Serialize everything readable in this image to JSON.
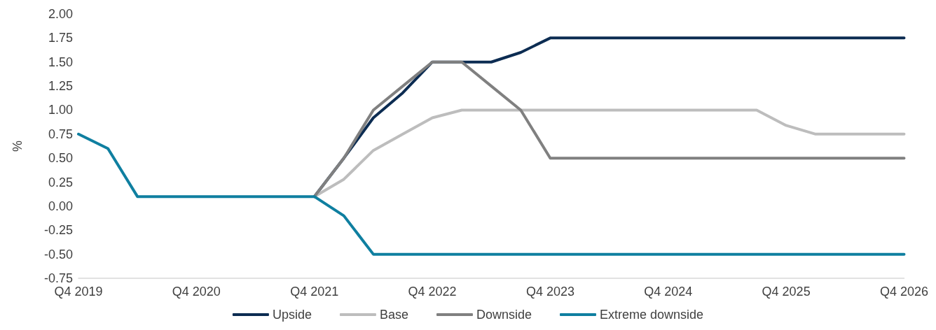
{
  "chart_data": {
    "type": "line",
    "ylabel": "%",
    "categories": [
      "Q4 2019",
      null,
      null,
      null,
      "Q4 2020",
      null,
      null,
      null,
      "Q4 2021",
      null,
      null,
      null,
      "Q4 2022",
      null,
      null,
      null,
      "Q4 2023",
      null,
      null,
      null,
      "Q4 2024",
      null,
      null,
      null,
      "Q4 2025",
      null,
      null,
      null,
      "Q4 2026"
    ],
    "series": [
      {
        "name": "Upside",
        "color": "#0c2c52",
        "values": [
          null,
          null,
          null,
          null,
          null,
          null,
          null,
          null,
          0.1,
          0.5,
          0.92,
          1.18,
          1.5,
          1.5,
          1.5,
          1.6,
          1.75,
          1.75,
          1.75,
          1.75,
          1.75,
          1.75,
          1.75,
          1.75,
          1.75,
          1.75,
          1.75,
          1.75,
          1.75
        ]
      },
      {
        "name": "Base",
        "color": "#bdbdbd",
        "values": [
          null,
          null,
          null,
          null,
          null,
          null,
          null,
          null,
          0.1,
          0.28,
          0.58,
          0.75,
          0.92,
          1.0,
          1.0,
          1.0,
          1.0,
          1.0,
          1.0,
          1.0,
          1.0,
          1.0,
          1.0,
          1.0,
          0.84,
          0.75,
          0.75,
          0.75,
          0.75
        ]
      },
      {
        "name": "Downside",
        "color": "#808080",
        "values": [
          null,
          null,
          null,
          null,
          null,
          null,
          null,
          null,
          0.1,
          0.5,
          1.0,
          1.25,
          1.5,
          1.5,
          1.25,
          1.0,
          0.5,
          0.5,
          0.5,
          0.5,
          0.5,
          0.5,
          0.5,
          0.5,
          0.5,
          0.5,
          0.5,
          0.5,
          0.5
        ]
      },
      {
        "name": "Extreme downside",
        "color": "#0f7fa0",
        "values": [
          0.75,
          0.6,
          0.1,
          0.1,
          0.1,
          0.1,
          0.1,
          0.1,
          0.1,
          -0.1,
          -0.5,
          -0.5,
          -0.5,
          -0.5,
          -0.5,
          -0.5,
          -0.5,
          -0.5,
          -0.5,
          -0.5,
          -0.5,
          -0.5,
          -0.5,
          -0.5,
          -0.5,
          -0.5,
          -0.5,
          -0.5,
          -0.5
        ]
      }
    ],
    "ylim": [
      -0.75,
      2.0
    ],
    "yticks": [
      {
        "value": -0.75,
        "label": "-0.75"
      },
      {
        "value": -0.5,
        "label": "-0.50"
      },
      {
        "value": -0.25,
        "label": "-0.25"
      },
      {
        "value": 0,
        "label": "0.00"
      },
      {
        "value": 0.25,
        "label": "0.25"
      },
      {
        "value": 0.5,
        "label": "0.50"
      },
      {
        "value": 0.75,
        "label": "0.75"
      },
      {
        "value": 1.0,
        "label": "1.00"
      },
      {
        "value": 1.25,
        "label": "1.25"
      },
      {
        "value": 1.5,
        "label": "1.50"
      },
      {
        "value": 1.75,
        "label": "1.75"
      },
      {
        "value": 2.0,
        "label": "2.00"
      }
    ],
    "grid": false,
    "legend": "bottom",
    "marker": "none",
    "line_style": "solid"
  }
}
